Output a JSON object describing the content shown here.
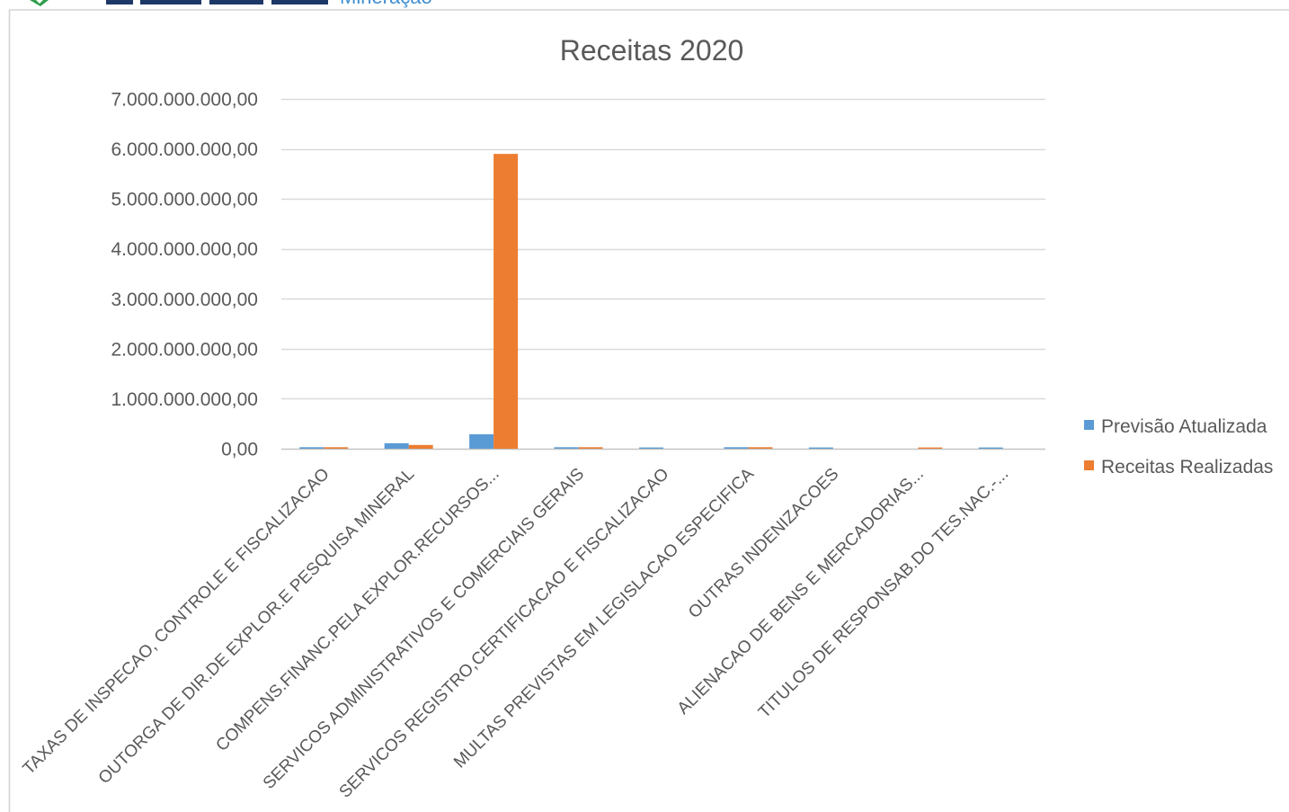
{
  "header": {
    "logo_subtitle": "Mineração"
  },
  "chart_data": {
    "type": "bar",
    "title": "Receitas 2020",
    "categories": [
      "TAXAS DE INSPECAO, CONTROLE E FISCALIZACAO",
      "OUTORGA DE DIR.DE EXPLOR.E PESQUISA MINERAL",
      "COMPENS.FINANC.PELA EXPLOR.RECURSOS...",
      "SERVICOS ADMINISTRATIVOS E COMERCIAIS GERAIS",
      "SERVICOS REGISTRO,CERTIFICACAO E FISCALIZACAO",
      "MULTAS PREVISTAS EM LEGISLACAO ESPECIFICA",
      "OUTRAS INDENIZACOES",
      "ALIENACAO DE BENS E MERCADORIAS...",
      "TITULOS DE RESPONSAB.DO TES.NAC.-..."
    ],
    "series": [
      {
        "name": "Previsão Atualizada",
        "color": "#5b9bd5",
        "values": [
          30000000,
          110000000,
          290000000,
          30000000,
          25000000,
          30000000,
          25000000,
          0,
          25000000
        ]
      },
      {
        "name": "Receitas Realizadas",
        "color": "#ed7d31",
        "values": [
          30000000,
          75000000,
          5900000000,
          30000000,
          0,
          30000000,
          0,
          25000000,
          0
        ]
      }
    ],
    "ylim": [
      0,
      7000000000
    ],
    "yticks": [
      0,
      1000000000,
      2000000000,
      3000000000,
      4000000000,
      5000000000,
      6000000000,
      7000000000
    ],
    "ytick_labels": [
      "0,00",
      "1.000.000.000,00",
      "2.000.000.000,00",
      "3.000.000.000,00",
      "4.000.000.000,00",
      "5.000.000.000,00",
      "6.000.000.000,00",
      "7.000.000.000,00"
    ],
    "grid": true,
    "legend": "right"
  }
}
